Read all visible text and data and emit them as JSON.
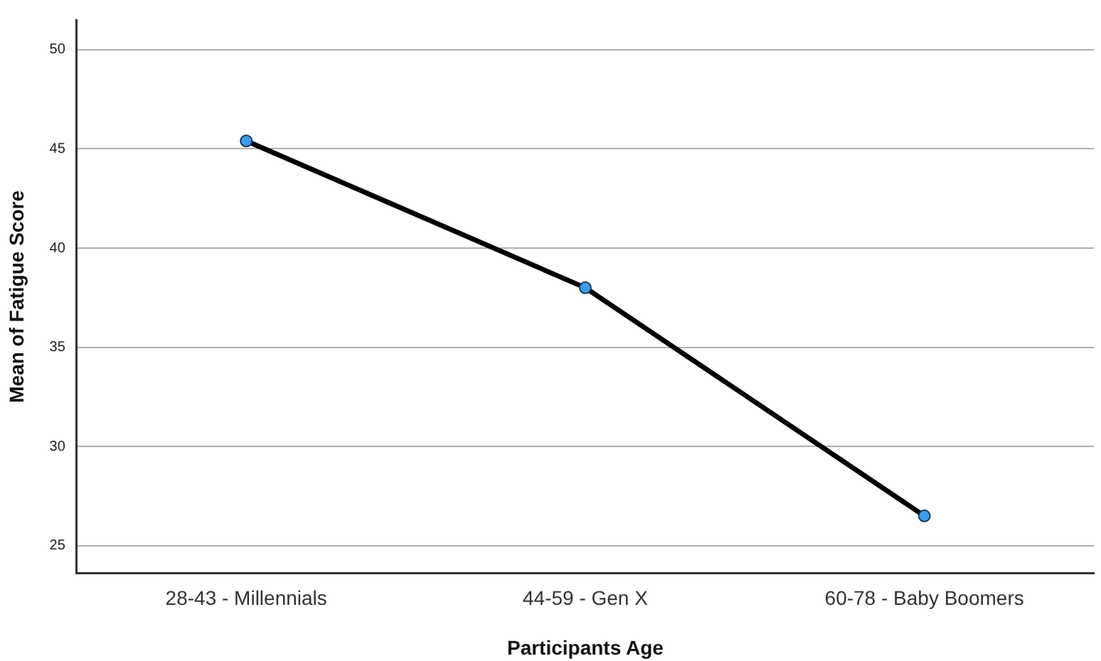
{
  "chart_data": {
    "type": "line",
    "xlabel": "Participants Age",
    "ylabel": "Mean of Fatigue Score",
    "categories": [
      "28-43 - Millennials",
      "44-59 - Gen X",
      "60-78 - Baby Boomers"
    ],
    "series": [
      {
        "color": "#000000",
        "values": [
          45.4,
          38.0,
          26.5
        ]
      }
    ],
    "marker": "circle",
    "ylim": [
      23.6,
      51.5
    ],
    "yticks": [
      25,
      30,
      35,
      40,
      45,
      50
    ],
    "grid": "y",
    "legend": false
  }
}
